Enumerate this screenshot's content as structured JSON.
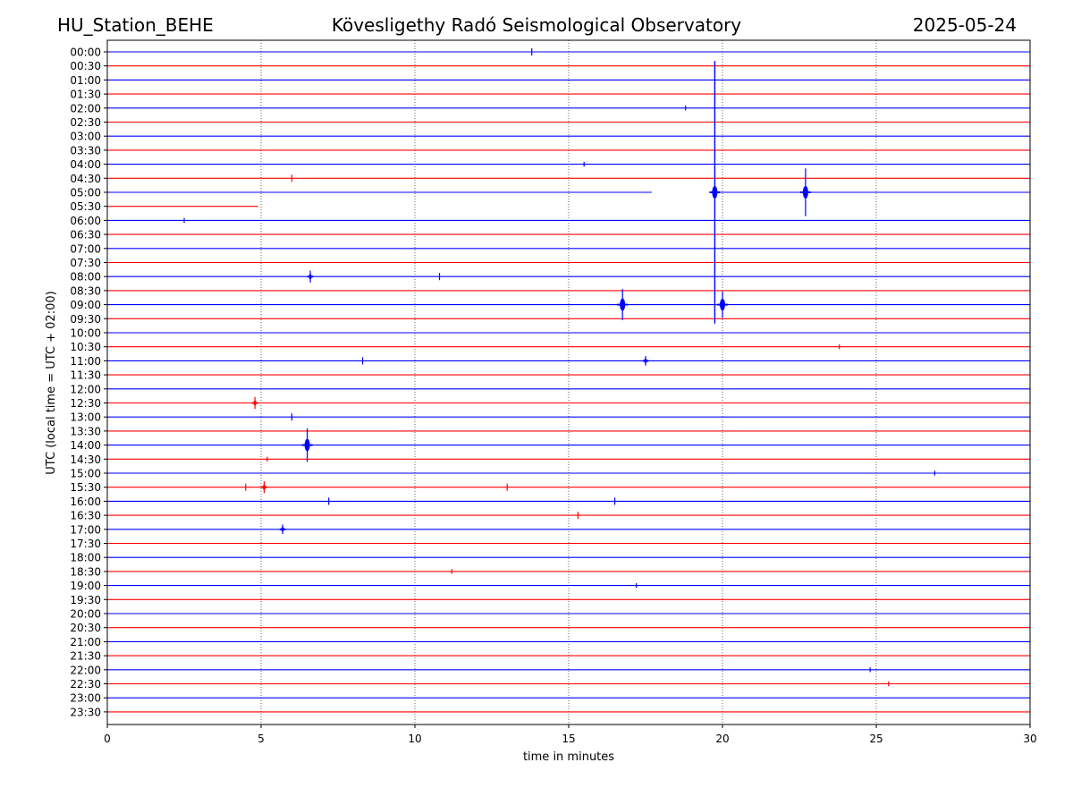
{
  "header": {
    "station": "HU_Station_BEHE",
    "observatory": "Kövesligethy Radó Seismological Observatory",
    "date": "2025-05-24"
  },
  "chart_data": {
    "type": "line",
    "title": "Kövesligethy Radó Seismological Observatory",
    "xlabel": "time in minutes",
    "ylabel": "UTC (local time = UTC + 02:00)",
    "xlim": [
      0,
      30
    ],
    "x_ticks": [
      "0",
      "5",
      "10",
      "15",
      "20",
      "25",
      "30"
    ],
    "grid": "vertical dotted lines at 5-minute intervals",
    "row_labels": [
      "00:00",
      "00:30",
      "01:00",
      "01:30",
      "02:00",
      "02:30",
      "03:00",
      "03:30",
      "04:00",
      "04:30",
      "05:00",
      "05:30",
      "06:00",
      "06:30",
      "07:00",
      "07:30",
      "08:00",
      "08:30",
      "09:00",
      "09:30",
      "10:00",
      "10:30",
      "11:00",
      "11:30",
      "12:00",
      "12:30",
      "13:00",
      "13:30",
      "14:00",
      "14:30",
      "15:00",
      "15:30",
      "16:00",
      "16:30",
      "17:00",
      "17:30",
      "18:00",
      "18:30",
      "19:00",
      "19:30",
      "20:00",
      "20:30",
      "21:00",
      "21:30",
      "22:00",
      "22:30",
      "23:00",
      "23:30"
    ],
    "colors": {
      "even_rows": "#0000ff",
      "odd_rows": "#ff0000"
    },
    "events": [
      {
        "row": "00:00",
        "minute": 13.8,
        "amp": 0.3
      },
      {
        "row": "02:00",
        "minute": 18.8,
        "amp": 0.2
      },
      {
        "row": "04:00",
        "minute": 15.5,
        "amp": 0.2
      },
      {
        "row": "04:30",
        "minute": 6.0,
        "amp": 0.3
      },
      {
        "row": "05:00",
        "minute": 19.75,
        "amp": 11
      },
      {
        "row": "05:00",
        "minute": 22.7,
        "amp": 2.0
      },
      {
        "row": "06:00",
        "minute": 2.5,
        "amp": 0.2
      },
      {
        "row": "08:00",
        "minute": 6.6,
        "amp": 0.5
      },
      {
        "row": "08:00",
        "minute": 10.8,
        "amp": 0.3
      },
      {
        "row": "09:00",
        "minute": 16.75,
        "amp": 1.3
      },
      {
        "row": "09:00",
        "minute": 20.0,
        "amp": 1.1
      },
      {
        "row": "10:30",
        "minute": 23.8,
        "amp": 0.2
      },
      {
        "row": "11:00",
        "minute": 8.3,
        "amp": 0.3
      },
      {
        "row": "11:00",
        "minute": 17.5,
        "amp": 0.4
      },
      {
        "row": "12:30",
        "minute": 4.8,
        "amp": 0.5
      },
      {
        "row": "13:00",
        "minute": 6.0,
        "amp": 0.3
      },
      {
        "row": "14:00",
        "minute": 6.5,
        "amp": 1.4
      },
      {
        "row": "14:30",
        "minute": 5.2,
        "amp": 0.2
      },
      {
        "row": "15:00",
        "minute": 26.9,
        "amp": 0.2
      },
      {
        "row": "15:30",
        "minute": 5.1,
        "amp": 0.5
      },
      {
        "row": "15:30",
        "minute": 4.5,
        "amp": 0.3
      },
      {
        "row": "15:30",
        "minute": 13.0,
        "amp": 0.3
      },
      {
        "row": "16:00",
        "minute": 7.2,
        "amp": 0.3
      },
      {
        "row": "16:00",
        "minute": 16.5,
        "amp": 0.3
      },
      {
        "row": "16:30",
        "minute": 15.3,
        "amp": 0.3
      },
      {
        "row": "17:00",
        "minute": 5.7,
        "amp": 0.4
      },
      {
        "row": "18:30",
        "minute": 11.2,
        "amp": 0.2
      },
      {
        "row": "19:00",
        "minute": 17.2,
        "amp": 0.2
      },
      {
        "row": "22:00",
        "minute": 24.8,
        "amp": 0.2
      },
      {
        "row": "22:30",
        "minute": 25.4,
        "amp": 0.2
      }
    ],
    "gaps": [
      {
        "row": "05:00",
        "from_minute": 17.7,
        "to_minute": 19.7
      },
      {
        "row": "05:30",
        "from_minute": 4.9,
        "to_minute": 30
      }
    ]
  }
}
